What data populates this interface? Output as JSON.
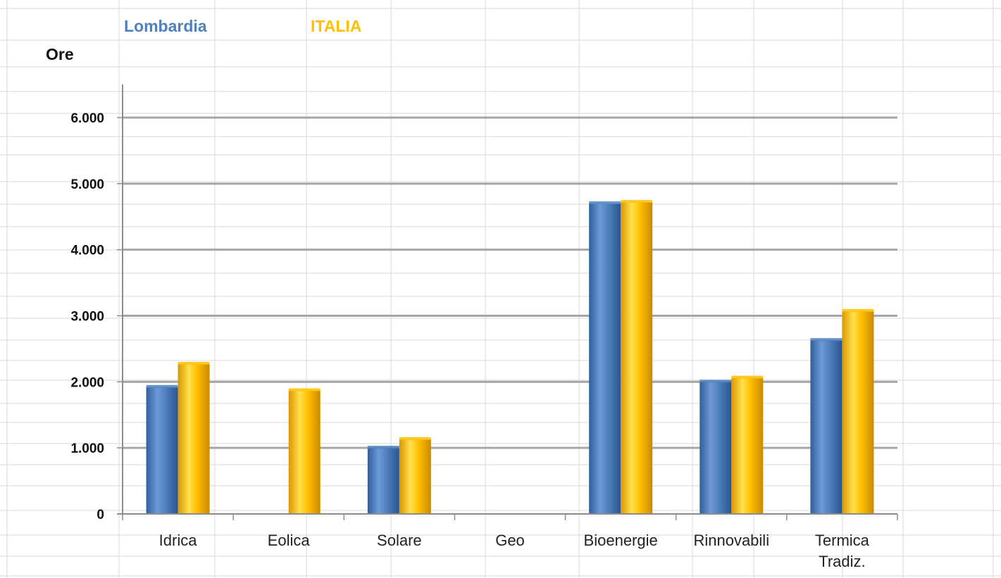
{
  "chart_data": {
    "type": "bar",
    "title": "",
    "xlabel": "",
    "ylabel": "Ore",
    "categories": [
      "Idrica",
      "Eolica",
      "Solare",
      "Geo",
      "Bioenergie",
      "Rinnovabili",
      "Termica Tradiz."
    ],
    "category_lines": [
      [
        "Idrica"
      ],
      [
        "Eolica"
      ],
      [
        "Solare"
      ],
      [
        "Geo"
      ],
      [
        "Bioenergie"
      ],
      [
        "Rinnovabili"
      ],
      [
        "Termica",
        "Tradiz."
      ]
    ],
    "series": [
      {
        "name": "Lombardia",
        "color": "#4f81bd",
        "values": [
          1920,
          0,
          1000,
          0,
          4700,
          2000,
          2630
        ]
      },
      {
        "name": "ITALIA",
        "color": "#ffc000",
        "values": [
          2270,
          1870,
          1130,
          0,
          4720,
          2060,
          3070
        ]
      }
    ],
    "ylim": [
      0,
      6000
    ],
    "yticks": [
      0,
      1000,
      2000,
      3000,
      4000,
      5000,
      6000
    ],
    "ytick_labels": [
      "0",
      "1.000",
      "2.000",
      "3.000",
      "4.000",
      "5.000",
      "6.000"
    ],
    "grid": true,
    "legend_position": "top-left"
  }
}
